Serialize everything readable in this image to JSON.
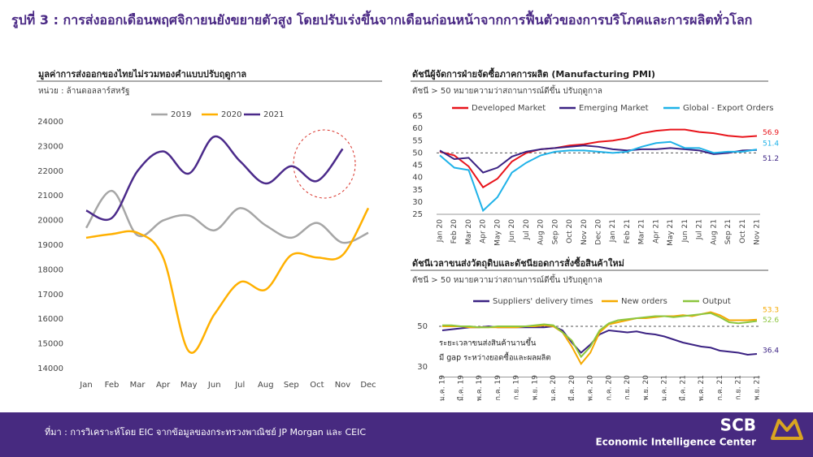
{
  "title": "รูปที่ 3 : การส่งออกเดือนพฤศจิกายนยังขยายตัวสูง  โดยปรับเร่งขึ้นจากเดือนก่อนหน้าจากการฟื้นตัวของการบริโภคและการผลิตทั่วโลก",
  "source": "ที่มา : การวิเคราะห์โดย EIC จากข้อมูลของกระทรวงพาณิชย์ JP Morgan และ CEIC",
  "logo": {
    "name": "SCB",
    "subtitle": "Economic Intelligence Center"
  },
  "chart_data": [
    {
      "type": "line",
      "smooth": true,
      "title": "มูลค่าการส่งออกของไทยไม่รวมทองคำแบบปรับฤดูกาล",
      "subtitle": "หน่วย : ล้านดอลลาร์สหรัฐ",
      "categories": [
        "Jan",
        "Feb",
        "Mar",
        "Apr",
        "May",
        "Jun",
        "Jul",
        "Aug",
        "Sep",
        "Oct",
        "Nov",
        "Dec"
      ],
      "series": [
        {
          "name": "2019",
          "color": "#a6a6a6",
          "values": [
            19700,
            21200,
            19400,
            20000,
            20200,
            19600,
            20500,
            19800,
            19300,
            19900,
            19100,
            19500
          ]
        },
        {
          "name": "2020",
          "color": "#ffb000",
          "values": [
            19300,
            19450,
            19500,
            18500,
            14700,
            16200,
            17500,
            17200,
            18600,
            18500,
            18600,
            20500
          ]
        },
        {
          "name": "2021",
          "color": "#4b2a8a",
          "values": [
            20400,
            20100,
            22000,
            22800,
            21900,
            23400,
            22400,
            21500,
            22200,
            21600,
            22900,
            null
          ]
        }
      ],
      "ylim": [
        14000,
        24000
      ],
      "yticks": [
        14000,
        15000,
        16000,
        17000,
        18000,
        19000,
        20000,
        21000,
        22000,
        23000,
        24000
      ]
    },
    {
      "type": "line",
      "end_labels": true,
      "reference_y": 50,
      "title": "ดัชนีผู้จัดการฝ่ายจัดซื้อภาคการผลิต (Manufacturing PMI)",
      "subtitle": "ดัชนี > 50 หมายความว่าสถานการณ์ดีขึ้น ปรับฤดูกาล",
      "categories": [
        "Jan 20",
        "Feb 20",
        "Mar 20",
        "Apr 20",
        "May 20",
        "Jun 20",
        "Jul 20",
        "Aug 20",
        "Sep 20",
        "Oct 20",
        "Nov 20",
        "Dec 20",
        "Jan 21",
        "Feb 21",
        "Mar 21",
        "Apr 21",
        "May 21",
        "Jun 21",
        "Jul 21",
        "Aug 21",
        "Sep 21",
        "Oct 21",
        "Nov 21"
      ],
      "series": [
        {
          "name": "Developed Market",
          "color": "#e8141b",
          "values": [
            50.5,
            49,
            44.5,
            36,
            39.5,
            46.5,
            50,
            51.5,
            52,
            53,
            53.5,
            54.5,
            55,
            56,
            58,
            59,
            59.5,
            59.5,
            58.5,
            58,
            57,
            56.5,
            56.9
          ]
        },
        {
          "name": "Emerging Market",
          "color": "#3b2283",
          "values": [
            51,
            47.5,
            48,
            42,
            44,
            48.5,
            50.5,
            51.5,
            52,
            52.5,
            53,
            52.5,
            51.5,
            51,
            51.5,
            51.5,
            52,
            51.5,
            51,
            49.5,
            50,
            51,
            51.2
          ]
        },
        {
          "name": "Global - Export Orders",
          "color": "#1fb2e8",
          "values": [
            49,
            44,
            43,
            26.5,
            32,
            42,
            46,
            49,
            50.5,
            51,
            51,
            50.5,
            50,
            50.5,
            52.5,
            54,
            54.5,
            52,
            52,
            50,
            50.5,
            50.5,
            51.4
          ]
        }
      ],
      "ylim": [
        25,
        65
      ],
      "yticks": [
        25,
        30,
        35,
        40,
        45,
        50,
        55,
        60,
        65
      ]
    },
    {
      "type": "line",
      "end_labels": true,
      "reference_y": 50,
      "title": "ดัชนีเวลาขนส่งวัตถุดิบและดัชนียอดการสั่งซื้อสินค้าใหม่",
      "subtitle": "ดัชนี > 50 หมายความว่าสถานการณ์ดีขึ้น ปรับฤดูกาล",
      "categories": [
        "ม.ค. 19",
        null,
        "มี.ค. 19",
        null,
        "พ.ค. 19",
        null,
        "ก.ค. 19",
        null,
        "ก.ย. 19",
        null,
        "พ.ย. 19",
        null,
        "ม.ค. 20",
        null,
        "มี.ค. 20",
        null,
        "พ.ค. 20",
        null,
        "ก.ค. 20",
        null,
        "ก.ย. 20",
        null,
        "พ.ย. 20",
        null,
        "ม.ค. 21",
        null,
        "มี.ค. 21",
        null,
        "พ.ค. 21",
        null,
        "ก.ค. 21",
        null,
        "ก.ย. 21",
        null,
        "พ.ย. 21"
      ],
      "series": [
        {
          "name": "Suppliers' delivery times",
          "color": "#3b2283",
          "values": [
            48,
            48.5,
            49,
            49.5,
            49.5,
            50,
            49.5,
            49.5,
            49.5,
            49.5,
            49.5,
            49.5,
            50,
            48,
            42,
            37,
            41,
            46,
            48,
            47.5,
            47,
            47.5,
            46.5,
            46,
            45,
            43.5,
            42,
            41,
            40,
            39.5,
            38,
            37.5,
            37,
            36,
            36.4
          ]
        },
        {
          "name": "New orders",
          "color": "#f5a900",
          "values": [
            50,
            50,
            50,
            49.5,
            49.5,
            49.5,
            49.5,
            49.5,
            49.5,
            50,
            50,
            50.5,
            50,
            47,
            40,
            31.5,
            37,
            47,
            51,
            52,
            53,
            54,
            54,
            54.5,
            55,
            55,
            55.5,
            55,
            56,
            57,
            55.5,
            53,
            53,
            53,
            53.3
          ]
        },
        {
          "name": "Output",
          "color": "#8cc63f",
          "values": [
            50.5,
            50.5,
            50,
            50,
            49.5,
            49.5,
            50,
            50,
            50,
            50,
            50.5,
            51,
            50.5,
            47,
            43,
            35,
            40,
            48,
            51.5,
            53,
            53.5,
            54,
            54.5,
            55,
            55,
            54.5,
            55,
            55.5,
            56,
            56.5,
            54.5,
            52,
            51.5,
            52,
            52.6
          ]
        }
      ],
      "ylim": [
        25,
        58
      ],
      "yticks": [
        30,
        50
      ],
      "annotations": [
        "ระยะเวลาขนส่งสินค้านานขึ้น",
        "มี gap ระหว่างยอดซื้อและผลผลิต"
      ]
    }
  ]
}
